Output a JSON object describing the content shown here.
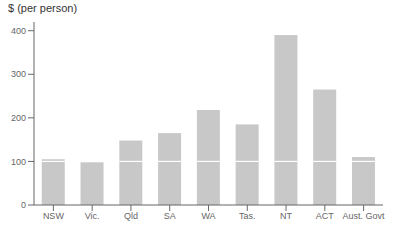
{
  "chart_data": {
    "type": "bar",
    "ylabel": "$ (per person)",
    "categories": [
      "NSW",
      "Vic.",
      "Qld",
      "SA",
      "WA",
      "Tas.",
      "NT",
      "ACT",
      "Aust. Govt"
    ],
    "values": [
      105,
      98,
      148,
      165,
      218,
      185,
      390,
      265,
      110
    ],
    "divider_values": [
      100,
      98,
      100,
      100,
      100,
      100,
      100,
      100,
      100
    ],
    "color": "#c8c8c8",
    "ylim": [
      0,
      420
    ],
    "yticks": [
      0,
      100,
      200,
      300,
      400
    ],
    "grid": false
  }
}
